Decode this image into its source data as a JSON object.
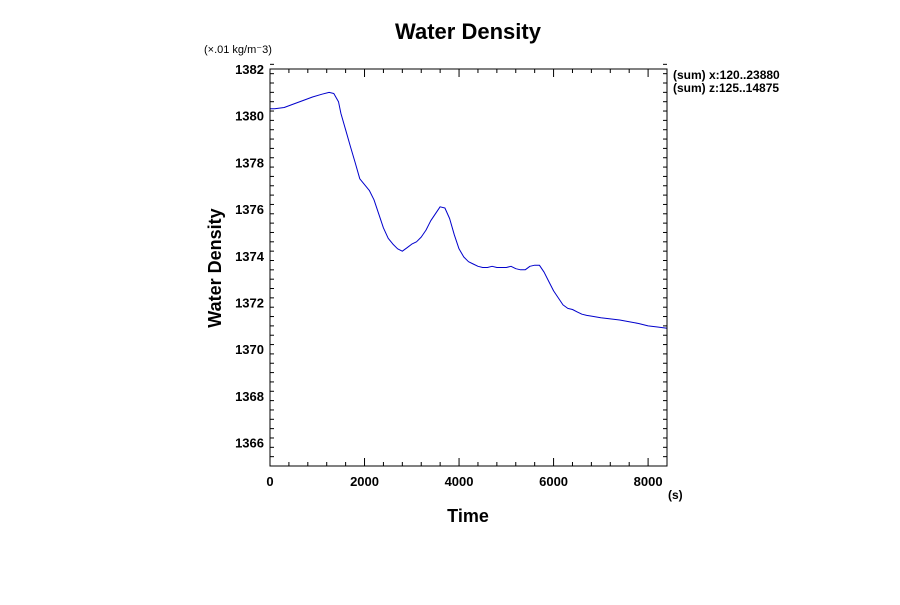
{
  "chart_data": {
    "type": "line",
    "title": "Water Density",
    "xlabel": "Time",
    "ylabel": "Water Density",
    "x_unit": "(s)",
    "y_unit": "(×.01 kg/m⁻3)",
    "annotations": [
      "(sum) x:120..23880",
      "(sum) z:125..14875"
    ],
    "xlim": [
      0,
      8400
    ],
    "ylim": [
      1365,
      1382
    ],
    "x_ticks": [
      0,
      2000,
      4000,
      6000,
      8000
    ],
    "x_tick_labels": [
      "0",
      "2000",
      "4000",
      "6000",
      "8000"
    ],
    "y_ticks": [
      1366,
      1368,
      1370,
      1372,
      1374,
      1376,
      1378,
      1380,
      1382
    ],
    "y_tick_labels": [
      "1366",
      "1368",
      "1370",
      "1372",
      "1374",
      "1376",
      "1378",
      "1380",
      "1382"
    ],
    "grid": false,
    "line_color": "#0000cc",
    "series": [
      {
        "x": [
          0,
          100,
          300,
          500,
          700,
          900,
          1100,
          1250,
          1350,
          1450,
          1500,
          1600,
          1700,
          1800,
          1900,
          2000,
          2100,
          2200,
          2300,
          2400,
          2500,
          2600,
          2700,
          2800,
          2900,
          3000,
          3100,
          3200,
          3300,
          3400,
          3500,
          3600,
          3700,
          3800,
          3900,
          4000,
          4100,
          4200,
          4300,
          4400,
          4500,
          4600,
          4700,
          4800,
          4900,
          5000,
          5100,
          5200,
          5300,
          5400,
          5500,
          5600,
          5700,
          5800,
          5900,
          6000,
          6100,
          6200,
          6300,
          6400,
          6500,
          6600,
          6700,
          6800,
          7000,
          7200,
          7400,
          7600,
          7800,
          8000,
          8200,
          8400
        ],
        "y": [
          1380.3,
          1380.3,
          1380.35,
          1380.5,
          1380.65,
          1380.8,
          1380.92,
          1381.0,
          1380.95,
          1380.6,
          1380.1,
          1379.4,
          1378.7,
          1378.0,
          1377.3,
          1377.05,
          1376.8,
          1376.4,
          1375.8,
          1375.2,
          1374.75,
          1374.5,
          1374.3,
          1374.2,
          1374.35,
          1374.5,
          1374.6,
          1374.8,
          1375.1,
          1375.5,
          1375.8,
          1376.1,
          1376.05,
          1375.6,
          1374.9,
          1374.3,
          1373.95,
          1373.75,
          1373.65,
          1373.55,
          1373.5,
          1373.5,
          1373.55,
          1373.5,
          1373.5,
          1373.5,
          1373.55,
          1373.45,
          1373.4,
          1373.4,
          1373.55,
          1373.6,
          1373.6,
          1373.3,
          1372.9,
          1372.5,
          1372.2,
          1371.9,
          1371.75,
          1371.7,
          1371.6,
          1371.5,
          1371.45,
          1371.42,
          1371.35,
          1371.3,
          1371.25,
          1371.18,
          1371.1,
          1371.0,
          1370.95,
          1370.9
        ]
      }
    ]
  }
}
